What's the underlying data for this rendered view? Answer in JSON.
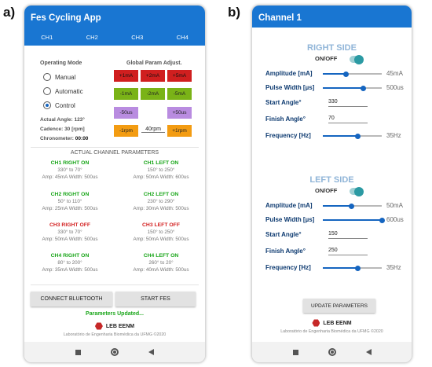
{
  "fig_labels": {
    "a": "a)",
    "b": "b)"
  },
  "app": {
    "title": "Fes Cycling App",
    "tabs": [
      "CH1",
      "CH2",
      "CH3",
      "CH4"
    ],
    "operating_mode": {
      "title": "Operating Mode",
      "options": [
        "Manual",
        "Automatic",
        "Control"
      ],
      "selected": "Control"
    },
    "global_params": {
      "title": "Global Param Adjust.",
      "amp_plus": [
        "+1mA",
        "+2mA",
        "+5mA"
      ],
      "amp_minus": [
        "-1mA",
        "-2mA",
        "-5mA"
      ],
      "pw_minus": "-50us",
      "pw_plus": "+50us",
      "rpm_minus": "-1rpm",
      "rpm_value": "40rpm",
      "rpm_plus": "+1rpm"
    },
    "readouts": {
      "actual_angle": "Actual Angle: 123°",
      "cadence": "Cadence: 30 [rpm]",
      "chronometer_label": "Chronometer:",
      "chronometer_value": "00:00"
    },
    "actual_params_title": "ACTUAL CHANNEL PARAMETERS",
    "channels": [
      {
        "header": "CH1 RIGHT ON",
        "state": "on",
        "angle": "330° to 70°",
        "amp": "Amp: 45mA Width: 500us"
      },
      {
        "header": "CH1 LEFT ON",
        "state": "on",
        "angle": "150° to 250°",
        "amp": "Amp: 50mA Width: 600us"
      },
      {
        "header": "CH2 RIGHT ON",
        "state": "on",
        "angle": "50° to 110°",
        "amp": "Amp: 25mA Width: 500us"
      },
      {
        "header": "CH2 LEFT ON",
        "state": "on",
        "angle": "230° to 290°",
        "amp": "Amp: 30mA Width: 500us"
      },
      {
        "header": "CH3 RIGHT OFF",
        "state": "off",
        "angle": "330° to 70°",
        "amp": "Amp: 50mA Width: 500us"
      },
      {
        "header": "CH3 LEFT OFF",
        "state": "off",
        "angle": "150° to 250°",
        "amp": "Amp: 50mA Width: 500us"
      },
      {
        "header": "CH4 RIGHT ON",
        "state": "on",
        "angle": "80° to 200°",
        "amp": "Amp: 35mA Width: 500us"
      },
      {
        "header": "CH4 LEFT ON",
        "state": "on",
        "angle": "260° to 20°",
        "amp": "Amp: 40mA Width: 500us"
      }
    ],
    "buttons": {
      "connect": "CONNECT BLUETOOTH",
      "start": "START FES"
    },
    "status": "Parameters Updated...",
    "logo_text": "LEB EENM",
    "credit": "Laboratório de Engenharia Biomédica da UFMG ©2020"
  },
  "channel_screen": {
    "title": "Channel 1",
    "right": {
      "title": "RIGHT SIDE",
      "onoff": "ON/OFF",
      "amplitude_label": "Amplitude [mA]",
      "amplitude_value": "45mA",
      "amplitude_level": 0.39,
      "pulse_label": "Pulse Width [µs]",
      "pulse_value": "500us",
      "pulse_level": 0.68,
      "start_label": "Start Angle°",
      "start_value": "330",
      "finish_label": "Finish Angle°",
      "finish_value": "70",
      "freq_label": "Frequency [Hz]",
      "freq_value": "35Hz",
      "freq_level": 0.58
    },
    "left": {
      "title": "LEFT SIDE",
      "onoff": "ON/OFF",
      "amplitude_label": "Amplitude [mA]",
      "amplitude_value": "50mA",
      "amplitude_level": 0.48,
      "pulse_label": "Pulse Width [µs]",
      "pulse_value": "600us",
      "pulse_level": 1.0,
      "start_label": "Start Angle°",
      "start_value": "150",
      "finish_label": "Finish Angle°",
      "finish_value": "250",
      "freq_label": "Frequency [Hz]",
      "freq_value": "35Hz",
      "freq_level": 0.58
    },
    "update_button": "UPDATE PARAMETERS",
    "logo_text": "LEB EENM",
    "credit": "Laboratório de Engenharia Biomédica da UFMG ©2020"
  },
  "colors": {
    "appbar": "#1976d2",
    "on": "#1aa61a",
    "off": "#d32020",
    "slider": "#1565c0"
  }
}
